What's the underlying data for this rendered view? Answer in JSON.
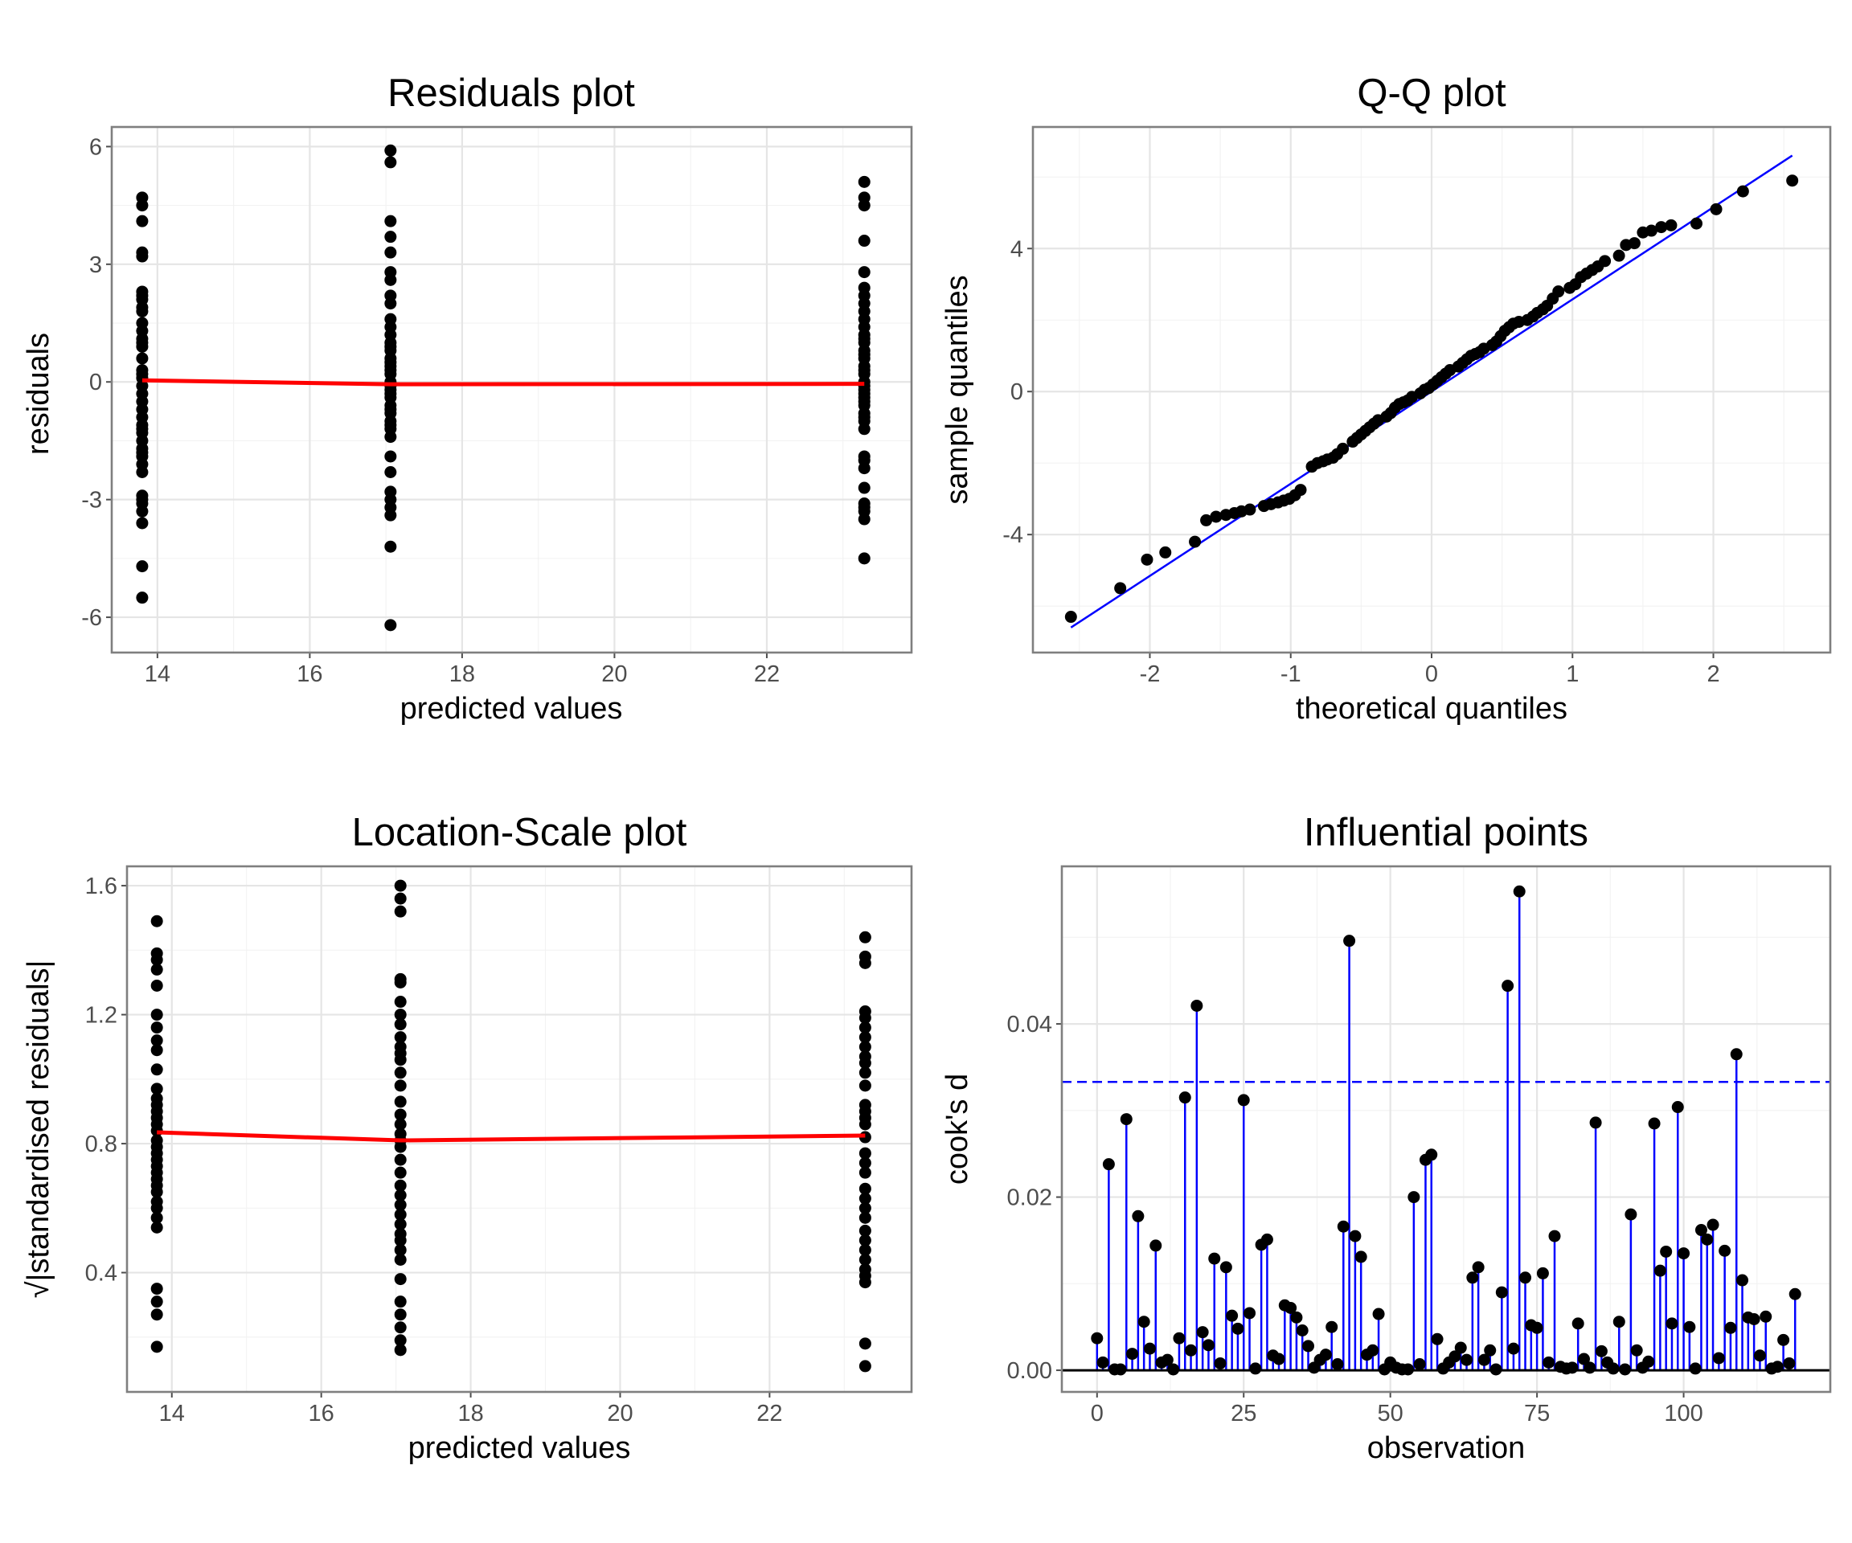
{
  "chart_data": [
    {
      "id": "residuals",
      "type": "scatter",
      "title": "Residuals plot",
      "xlabel": "predicted values",
      "ylabel": "residuals",
      "xlim": [
        13.4,
        23.9
      ],
      "ylim": [
        -6.9,
        6.5
      ],
      "xticks": [
        14,
        16,
        18,
        20,
        22
      ],
      "yticks": [
        -6,
        -3,
        0,
        3,
        6
      ],
      "point_color": "#000000",
      "series": [
        {
          "x": [
            13.8,
            13.8,
            13.8,
            13.8,
            13.8,
            13.8,
            13.8,
            13.8,
            13.8,
            13.8,
            13.8,
            13.8,
            13.8,
            13.8,
            13.8,
            13.8,
            13.8,
            13.8,
            13.8,
            13.8,
            13.8,
            13.8,
            13.8,
            13.8,
            13.8,
            13.8,
            13.8,
            13.8,
            13.8,
            13.8,
            13.8,
            13.8,
            13.8,
            13.8,
            13.8,
            13.8,
            13.8,
            13.8,
            13.8,
            13.8,
            17.06,
            17.06,
            17.06,
            17.06,
            17.06,
            17.06,
            17.06,
            17.06,
            17.06,
            17.06,
            17.06,
            17.06,
            17.06,
            17.06,
            17.06,
            17.06,
            17.06,
            17.06,
            17.06,
            17.06,
            17.06,
            17.06,
            17.06,
            17.06,
            17.06,
            17.06,
            17.06,
            17.06,
            17.06,
            17.06,
            17.06,
            17.06,
            17.06,
            17.06,
            17.06,
            17.06,
            17.06,
            17.06,
            17.06,
            17.06,
            23.28,
            23.28,
            23.28,
            23.28,
            23.28,
            23.28,
            23.28,
            23.28,
            23.28,
            23.28,
            23.28,
            23.28,
            23.28,
            23.28,
            23.28,
            23.28,
            23.28,
            23.28,
            23.28,
            23.28,
            23.28,
            23.28,
            23.28,
            23.28,
            23.28,
            23.28,
            23.28,
            23.28,
            23.28,
            23.28,
            23.28,
            23.28,
            23.28,
            23.28,
            23.28,
            23.28,
            23.28,
            23.28,
            23.28,
            23.28
          ],
          "y": [
            4.7,
            4.5,
            4.1,
            3.3,
            3.2,
            2.3,
            2.1,
            1.8,
            1.5,
            1.3,
            1.1,
            0.9,
            0.6,
            0.3,
            0.1,
            -0.1,
            -0.3,
            -0.7,
            -0.9,
            -1.1,
            -1.3,
            -1.5,
            -1.7,
            -1.9,
            -2.1,
            -2.3,
            -2.9,
            -3.1,
            -3.3,
            -3.6,
            -4.7,
            -5.5,
            2.2,
            1.9,
            1.0,
            0.2,
            -0.5,
            -1.2,
            -1.8,
            -3.0,
            5.9,
            5.6,
            4.1,
            3.7,
            3.3,
            2.8,
            2.6,
            2.2,
            2.0,
            1.6,
            1.2,
            1.0,
            0.8,
            0.6,
            0.4,
            0.2,
            0.0,
            -0.2,
            -0.4,
            -0.6,
            -0.8,
            -1.0,
            -1.2,
            -1.9,
            -2.3,
            -2.8,
            -3.0,
            -3.2,
            -3.4,
            -4.2,
            -6.2,
            1.4,
            0.3,
            -0.1,
            -0.3,
            -0.7,
            -1.1,
            -1.4,
            0.9,
            0.5,
            5.1,
            4.7,
            4.5,
            3.6,
            2.8,
            2.4,
            2.0,
            1.8,
            1.6,
            1.2,
            1.0,
            0.8,
            0.6,
            0.4,
            0.2,
            0.0,
            -0.2,
            -0.4,
            -0.6,
            -0.8,
            -1.0,
            -1.2,
            -2.0,
            -2.2,
            -2.7,
            -3.1,
            -3.3,
            -3.5,
            -4.5,
            2.2,
            1.4,
            0.3,
            -0.1,
            -0.5,
            -0.9,
            1.1,
            -0.3,
            -1.9,
            0.7,
            -3.2
          ]
        }
      ],
      "trend": {
        "x": [
          13.8,
          17.06,
          23.28
        ],
        "y": [
          0.04,
          -0.06,
          -0.05
        ],
        "color": "#ff0000"
      }
    },
    {
      "id": "qq",
      "type": "scatter",
      "title": "Q-Q plot",
      "xlabel": "theoretical quantiles",
      "ylabel": "sample quantiles",
      "xlim": [
        -2.83,
        2.83
      ],
      "ylim": [
        -7.3,
        7.4
      ],
      "xticks": [
        -2,
        -1,
        0,
        1,
        2
      ],
      "yticks": [
        -4,
        0,
        4
      ],
      "point_color": "#000000",
      "ref_line": {
        "x": [
          -2.56,
          2.56
        ],
        "y": [
          -6.6,
          6.6
        ],
        "color": "#0000ff"
      }
    },
    {
      "id": "location-scale",
      "type": "scatter",
      "title": "Location-Scale plot",
      "xlabel": "predicted values",
      "ylabel": "√|standardised residuals|",
      "xlim": [
        13.4,
        23.9
      ],
      "ylim": [
        0.03,
        1.66
      ],
      "xticks": [
        14,
        16,
        18,
        20,
        22
      ],
      "yticks": [
        0.4,
        0.8,
        1.2,
        1.6
      ],
      "point_color": "#000000",
      "trend": {
        "x": [
          13.8,
          17.06,
          23.28
        ],
        "y": [
          0.835,
          0.81,
          0.825
        ],
        "color": "#ff0000"
      }
    },
    {
      "id": "influential",
      "type": "scatter",
      "title": "Influential points",
      "xlabel": "observation",
      "ylabel": "cook's d",
      "xlim": [
        -6,
        125
      ],
      "ylim": [
        -0.0025,
        0.0582
      ],
      "xticks": [
        0,
        25,
        50,
        75,
        100
      ],
      "ytick_labels": [
        "0.00",
        "0.02",
        "0.04"
      ],
      "yticks": [
        0,
        0.02,
        0.04
      ],
      "threshold": 0.0333,
      "threshold_color": "#0000ff",
      "stem_color": "#0000ff",
      "point_color": "#000000",
      "series": [
        {
          "x": [
            0,
            1,
            2,
            3,
            4,
            5,
            6,
            7,
            8,
            9,
            10,
            11,
            12,
            13,
            14,
            15,
            16,
            17,
            18,
            19,
            20,
            21,
            22,
            23,
            24,
            25,
            26,
            27,
            28,
            29,
            30,
            31,
            32,
            33,
            34,
            35,
            36,
            37,
            38,
            39,
            40,
            41,
            42,
            43,
            44,
            45,
            46,
            47,
            48,
            49,
            50,
            51,
            52,
            53,
            54,
            55,
            56,
            57,
            58,
            59,
            60,
            61,
            62,
            63,
            64,
            65,
            66,
            67,
            68,
            69,
            70,
            71,
            72,
            73,
            74,
            75,
            76,
            77,
            78,
            79,
            80,
            81,
            82,
            83,
            84,
            85,
            86,
            87,
            88,
            89,
            90,
            91,
            92,
            93,
            94,
            95,
            96,
            97,
            98,
            99,
            100,
            101,
            102,
            103,
            104,
            105,
            106,
            107,
            108,
            109,
            110,
            111,
            112,
            113,
            114,
            115,
            116,
            117,
            118,
            119
          ],
          "y": [
            0.0037,
            0.0009,
            0.0238,
            0.0001,
            0.0001,
            0.029,
            0.0019,
            0.0178,
            0.0056,
            0.0025,
            0.0144,
            0.0009,
            0.0012,
            0.0001,
            0.0037,
            0.0315,
            0.0023,
            0.0421,
            0.0044,
            0.0029,
            0.0129,
            0.0008,
            0.0119,
            0.0063,
            0.0048,
            0.0312,
            0.0066,
            0.0002,
            0.0145,
            0.0151,
            0.0017,
            0.0013,
            0.0075,
            0.0072,
            0.0061,
            0.0046,
            0.0028,
            0.0003,
            0.0012,
            0.0018,
            0.005,
            0.0007,
            0.0166,
            0.0496,
            0.0155,
            0.0131,
            0.0018,
            0.0023,
            0.0065,
            0.0001,
            0.0009,
            0.0003,
            0.0001,
            0.0001,
            0.02,
            0.0007,
            0.0243,
            0.0249,
            0.0036,
            0.0002,
            0.0009,
            0.0016,
            0.0026,
            0.0012,
            0.0107,
            0.0119,
            0.0012,
            0.0023,
            0.0001,
            0.009,
            0.0444,
            0.0025,
            0.0553,
            0.0107,
            0.0052,
            0.0049,
            0.0112,
            0.0009,
            0.0155,
            0.0004,
            0.0002,
            0.0003,
            0.0054,
            0.0013,
            0.0003,
            0.0286,
            0.0022,
            0.0009,
            0.0002,
            0.0056,
            0.0001,
            0.018,
            0.0023,
            0.0003,
            0.001,
            0.0285,
            0.0115,
            0.0137,
            0.0054,
            0.0304,
            0.0135,
            0.005,
            0.0002,
            0.0162,
            0.0151,
            0.0168,
            0.0014,
            0.0138,
            0.0049,
            0.0365,
            0.0104,
            0.0061,
            0.0059,
            0.0017,
            0.0062,
            0.0002,
            0.0004,
            0.0035,
            0.0008,
            0.0088
          ]
        }
      ]
    }
  ]
}
